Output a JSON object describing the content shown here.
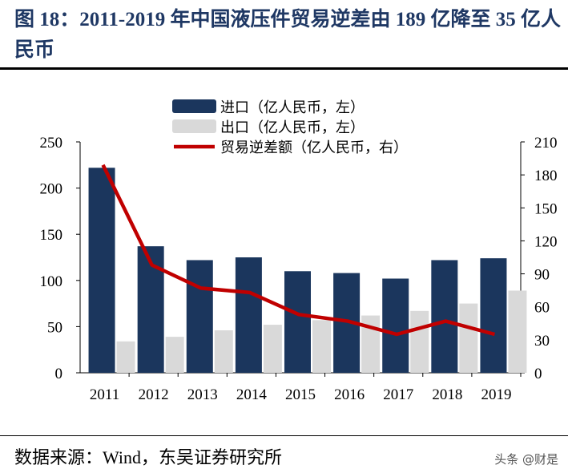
{
  "title": "图 18：2011-2019 年中国液压件贸易逆差由 189 亿降至 35 亿人民币",
  "source": "数据来源：Wind，东吴证券研究所",
  "watermark": "头条 @财是",
  "colors": {
    "import": "#1b365d",
    "export": "#d9d9d9",
    "deficit": "#c00000",
    "title": "#1f3864"
  },
  "chart_data": {
    "type": "bar+line",
    "categories": [
      "2011",
      "2012",
      "2013",
      "2014",
      "2015",
      "2016",
      "2017",
      "2018",
      "2019"
    ],
    "series": [
      {
        "name": "进口（亿人民币，左）",
        "type": "bar",
        "axis": "left",
        "values": [
          222,
          137,
          122,
          125,
          110,
          108,
          102,
          122,
          124
        ]
      },
      {
        "name": "出口（亿人民币，左）",
        "type": "bar",
        "axis": "left",
        "values": [
          34,
          39,
          46,
          52,
          57,
          62,
          67,
          75,
          89
        ]
      },
      {
        "name": "贸易逆差额（亿人民币，右）",
        "type": "line",
        "axis": "right",
        "values": [
          189,
          98,
          77,
          73,
          53,
          47,
          35,
          47,
          35
        ]
      }
    ],
    "ylim_left": [
      0,
      250
    ],
    "yticks_left": [
      "0",
      "50",
      "100",
      "150",
      "200",
      "250"
    ],
    "ylim_right": [
      0,
      210
    ],
    "yticks_right": [
      "0",
      "30",
      "60",
      "90",
      "120",
      "150",
      "180",
      "210"
    ],
    "grid": false,
    "legend": "top-center"
  }
}
